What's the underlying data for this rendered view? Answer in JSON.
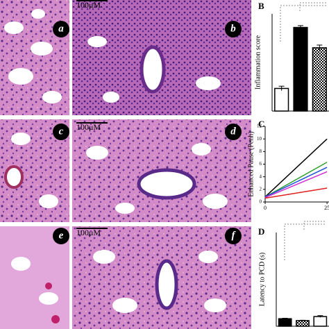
{
  "panels": [
    {
      "label": "a"
    },
    {
      "label": "b"
    },
    {
      "label": "c"
    },
    {
      "label": "d"
    },
    {
      "label": "e"
    },
    {
      "label": "f"
    }
  ],
  "scale_bars": [
    "100μM",
    "100μM",
    "100μM"
  ],
  "chart_data": [
    {
      "type": "bar",
      "title": "B",
      "y_label": "Inflammation score",
      "categories": [
        null,
        null,
        null
      ],
      "values": [
        1.0,
        3.7,
        2.8
      ],
      "errors": [
        0.1,
        0.08,
        0.12
      ],
      "fills": [
        "white",
        "black",
        "checkered"
      ],
      "ylim": [
        0,
        4.3
      ]
    },
    {
      "type": "line",
      "title": "C",
      "y_label": "Enhanced Pause (Penh)",
      "x": [
        0,
        25
      ],
      "series": [
        {
          "color": "#000000",
          "values": [
            0.8,
            10
          ]
        },
        {
          "color": "#2ca02c",
          "values": [
            0.8,
            6.3
          ]
        },
        {
          "color": "#1f4fd8",
          "values": [
            0.8,
            5.5
          ]
        },
        {
          "color": "#d02fd0",
          "values": [
            0.7,
            4.8
          ]
        },
        {
          "color": "#e02020",
          "values": [
            0.6,
            2.2
          ]
        }
      ],
      "xlim": [
        0,
        25.8
      ],
      "xticks": [
        0,
        25
      ],
      "ylim": [
        0,
        12
      ],
      "yticks": [
        0,
        2,
        4,
        6,
        8,
        10,
        12
      ]
    },
    {
      "type": "bar",
      "title": "D",
      "y_label": "Latency to PCD (s)",
      "categories": [
        null,
        null,
        null
      ],
      "values": [
        240,
        180,
        310
      ],
      "errors": [
        15,
        12,
        30
      ],
      "fills": [
        "black",
        "checkered",
        "white"
      ],
      "ylim": [
        0,
        3000
      ]
    }
  ]
}
